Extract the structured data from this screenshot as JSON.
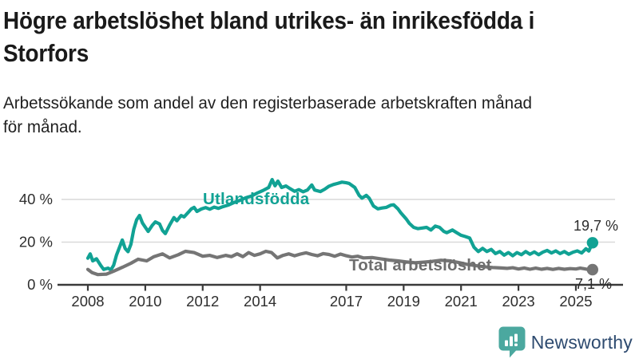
{
  "header": {
    "title_full": "Högre arbetslöshet bland utrikes- än inrikesfödda i Storfors",
    "title_lines": [
      "Högre arbetslöshet bland utrikes- än inrikesfödda i",
      "Storfors"
    ],
    "subtitle_full": "Arbetssökande som andel av den registerbaserade arbetskraften månad för månad.",
    "subtitle_lines": [
      "Arbetssökande som andel av den registerbaserade arbetskraften månad",
      "för månad."
    ]
  },
  "chart_data": {
    "type": "line",
    "title": "Högre arbetslöshet bland utrikes- än inrikesfödda i Storfors",
    "subtitle": "Arbetssökande som andel av den registerbaserade arbetskraften månad för månad.",
    "unit": "%",
    "grid": "horizontal",
    "legend_position": "inline-labels",
    "xlim": [
      2007.8,
      2026.0
    ],
    "ylim": [
      0,
      52
    ],
    "y_ticks": [
      {
        "value": 0,
        "label": "0 %"
      },
      {
        "value": 20,
        "label": "20 %"
      },
      {
        "value": 40,
        "label": "40 %"
      }
    ],
    "x_ticks": [
      {
        "year": 2008,
        "label": "2008"
      },
      {
        "year": 2010,
        "label": "2010"
      },
      {
        "year": 2012,
        "label": "2012"
      },
      {
        "year": 2014,
        "label": "2014"
      },
      {
        "year": 2017,
        "label": "2017"
      },
      {
        "year": 2019,
        "label": "2019"
      },
      {
        "year": 2021,
        "label": "2021"
      },
      {
        "year": 2023,
        "label": "2023"
      },
      {
        "year": 2025,
        "label": "2025"
      }
    ],
    "series": [
      {
        "name": "Utlandsfödda",
        "color": "#11A294",
        "end_value": 19.7,
        "end_label": "19,7 %",
        "points": [
          [
            2008.0,
            12.5
          ],
          [
            2008.08,
            14.5
          ],
          [
            2008.17,
            11.2
          ],
          [
            2008.3,
            12.2
          ],
          [
            2008.45,
            9.0
          ],
          [
            2008.55,
            7.2
          ],
          [
            2008.7,
            7.8
          ],
          [
            2008.8,
            7.0
          ],
          [
            2008.9,
            9.2
          ],
          [
            2009.0,
            14.0
          ],
          [
            2009.1,
            17.5
          ],
          [
            2009.2,
            21.0
          ],
          [
            2009.3,
            17.0
          ],
          [
            2009.4,
            15.5
          ],
          [
            2009.5,
            19.0
          ],
          [
            2009.6,
            26.0
          ],
          [
            2009.7,
            30.5
          ],
          [
            2009.8,
            32.5
          ],
          [
            2009.9,
            29.0
          ],
          [
            2010.0,
            27.0
          ],
          [
            2010.1,
            25.0
          ],
          [
            2010.25,
            28.0
          ],
          [
            2010.35,
            29.5
          ],
          [
            2010.5,
            28.5
          ],
          [
            2010.6,
            25.5
          ],
          [
            2010.7,
            24.0
          ],
          [
            2010.85,
            28.0
          ],
          [
            2011.0,
            31.5
          ],
          [
            2011.1,
            30.0
          ],
          [
            2011.25,
            32.5
          ],
          [
            2011.35,
            31.8
          ],
          [
            2011.5,
            34.0
          ],
          [
            2011.6,
            35.5
          ],
          [
            2011.7,
            36.3
          ],
          [
            2011.8,
            34.4
          ],
          [
            2011.95,
            35.5
          ],
          [
            2012.1,
            36.2
          ],
          [
            2012.25,
            35.4
          ],
          [
            2012.4,
            36.4
          ],
          [
            2012.55,
            35.8
          ],
          [
            2012.7,
            36.6
          ],
          [
            2012.9,
            37.4
          ],
          [
            2013.1,
            38.6
          ],
          [
            2013.3,
            39.6
          ],
          [
            2013.5,
            40.8
          ],
          [
            2013.7,
            41.6
          ],
          [
            2013.9,
            43.0
          ],
          [
            2014.1,
            44.2
          ],
          [
            2014.3,
            45.6
          ],
          [
            2014.42,
            49.3
          ],
          [
            2014.52,
            46.4
          ],
          [
            2014.62,
            48.6
          ],
          [
            2014.75,
            45.6
          ],
          [
            2014.9,
            46.3
          ],
          [
            2015.05,
            45.0
          ],
          [
            2015.2,
            43.8
          ],
          [
            2015.35,
            44.6
          ],
          [
            2015.5,
            43.6
          ],
          [
            2015.65,
            44.4
          ],
          [
            2015.8,
            46.8
          ],
          [
            2015.9,
            44.4
          ],
          [
            2016.1,
            43.7
          ],
          [
            2016.25,
            44.8
          ],
          [
            2016.4,
            46.2
          ],
          [
            2016.55,
            47.0
          ],
          [
            2016.7,
            47.5
          ],
          [
            2016.85,
            48.1
          ],
          [
            2017.0,
            47.8
          ],
          [
            2017.1,
            47.5
          ],
          [
            2017.3,
            45.6
          ],
          [
            2017.45,
            41.9
          ],
          [
            2017.55,
            40.6
          ],
          [
            2017.7,
            41.9
          ],
          [
            2017.8,
            40.6
          ],
          [
            2017.95,
            36.9
          ],
          [
            2018.1,
            35.6
          ],
          [
            2018.25,
            36.0
          ],
          [
            2018.4,
            36.3
          ],
          [
            2018.55,
            37.3
          ],
          [
            2018.65,
            37.5
          ],
          [
            2018.8,
            35.6
          ],
          [
            2018.9,
            33.8
          ],
          [
            2019.1,
            30.7
          ],
          [
            2019.2,
            28.8
          ],
          [
            2019.35,
            26.9
          ],
          [
            2019.5,
            26.3
          ],
          [
            2019.65,
            26.6
          ],
          [
            2019.8,
            26.9
          ],
          [
            2019.95,
            25.7
          ],
          [
            2020.1,
            27.5
          ],
          [
            2020.25,
            26.9
          ],
          [
            2020.4,
            25.0
          ],
          [
            2020.5,
            24.4
          ],
          [
            2020.7,
            25.7
          ],
          [
            2020.85,
            24.4
          ],
          [
            2021.0,
            23.2
          ],
          [
            2021.15,
            22.6
          ],
          [
            2021.3,
            21.9
          ],
          [
            2021.45,
            17.6
          ],
          [
            2021.6,
            15.6
          ],
          [
            2021.75,
            17.1
          ],
          [
            2021.9,
            15.6
          ],
          [
            2022.05,
            16.6
          ],
          [
            2022.2,
            14.6
          ],
          [
            2022.35,
            15.6
          ],
          [
            2022.5,
            13.9
          ],
          [
            2022.65,
            15.1
          ],
          [
            2022.8,
            13.6
          ],
          [
            2022.95,
            15.1
          ],
          [
            2023.1,
            14.1
          ],
          [
            2023.25,
            15.6
          ],
          [
            2023.4,
            14.3
          ],
          [
            2023.55,
            15.4
          ],
          [
            2023.7,
            14.1
          ],
          [
            2023.85,
            15.3
          ],
          [
            2024.0,
            16.1
          ],
          [
            2024.15,
            14.9
          ],
          [
            2024.3,
            15.9
          ],
          [
            2024.45,
            14.6
          ],
          [
            2024.6,
            15.6
          ],
          [
            2024.75,
            14.3
          ],
          [
            2024.9,
            15.3
          ],
          [
            2025.05,
            15.9
          ],
          [
            2025.2,
            14.9
          ],
          [
            2025.35,
            16.9
          ],
          [
            2025.45,
            15.8
          ],
          [
            2025.58,
            19.7
          ]
        ]
      },
      {
        "name": "Total arbetslöshet",
        "color": "#757575",
        "label_color": "#6E6E6E",
        "end_value": 7.1,
        "end_label": "7,1 %",
        "points": [
          [
            2008.0,
            7.2
          ],
          [
            2008.15,
            5.7
          ],
          [
            2008.35,
            4.8
          ],
          [
            2008.65,
            5.0
          ],
          [
            2008.9,
            6.4
          ],
          [
            2009.2,
            8.2
          ],
          [
            2009.5,
            10.1
          ],
          [
            2009.75,
            12.0
          ],
          [
            2010.05,
            11.2
          ],
          [
            2010.3,
            13.2
          ],
          [
            2010.6,
            14.5
          ],
          [
            2010.85,
            12.6
          ],
          [
            2011.15,
            14.1
          ],
          [
            2011.4,
            15.7
          ],
          [
            2011.7,
            15.1
          ],
          [
            2012.0,
            13.4
          ],
          [
            2012.25,
            13.8
          ],
          [
            2012.5,
            12.8
          ],
          [
            2012.8,
            13.8
          ],
          [
            2013.0,
            13.2
          ],
          [
            2013.2,
            14.5
          ],
          [
            2013.4,
            13.2
          ],
          [
            2013.6,
            15.1
          ],
          [
            2013.8,
            13.8
          ],
          [
            2014.0,
            14.5
          ],
          [
            2014.2,
            15.7
          ],
          [
            2014.4,
            15.1
          ],
          [
            2014.6,
            12.6
          ],
          [
            2014.8,
            13.8
          ],
          [
            2015.0,
            14.5
          ],
          [
            2015.2,
            13.6
          ],
          [
            2015.4,
            14.4
          ],
          [
            2015.6,
            15.0
          ],
          [
            2015.8,
            14.2
          ],
          [
            2016.0,
            13.6
          ],
          [
            2016.2,
            14.6
          ],
          [
            2016.4,
            14.2
          ],
          [
            2016.6,
            13.4
          ],
          [
            2016.8,
            14.4
          ],
          [
            2017.0,
            13.6
          ],
          [
            2017.2,
            13.0
          ],
          [
            2017.4,
            13.4
          ],
          [
            2017.6,
            12.6
          ],
          [
            2017.9,
            12.8
          ],
          [
            2018.2,
            12.2
          ],
          [
            2018.5,
            11.6
          ],
          [
            2018.8,
            11.2
          ],
          [
            2019.1,
            10.7
          ],
          [
            2019.4,
            10.3
          ],
          [
            2019.7,
            10.6
          ],
          [
            2020.0,
            11.0
          ],
          [
            2020.3,
            11.5
          ],
          [
            2020.6,
            11.2
          ],
          [
            2020.9,
            10.5
          ],
          [
            2021.2,
            9.6
          ],
          [
            2021.5,
            9.0
          ],
          [
            2021.8,
            8.5
          ],
          [
            2022.1,
            8.1
          ],
          [
            2022.4,
            7.9
          ],
          [
            2022.6,
            7.7
          ],
          [
            2022.8,
            8.0
          ],
          [
            2023.0,
            7.4
          ],
          [
            2023.2,
            7.9
          ],
          [
            2023.4,
            7.3
          ],
          [
            2023.6,
            7.8
          ],
          [
            2023.8,
            7.3
          ],
          [
            2024.0,
            7.7
          ],
          [
            2024.2,
            7.2
          ],
          [
            2024.4,
            7.7
          ],
          [
            2024.6,
            7.3
          ],
          [
            2024.8,
            7.6
          ],
          [
            2025.0,
            7.4
          ],
          [
            2025.15,
            7.8
          ],
          [
            2025.3,
            7.5
          ],
          [
            2025.45,
            7.1
          ],
          [
            2025.58,
            7.1
          ]
        ]
      }
    ]
  },
  "colors": {
    "accent_teal": "#11A294",
    "line_gray": "#757575",
    "gridline": "#D9D9D9",
    "axis": "#3A3A3A",
    "tick_text": "#2E2E2E",
    "value_label_text": "#2B2B2B"
  },
  "branding": {
    "logo_text": "Newsworthy",
    "logo_icon": "newsworthy-bubble-chart-icon",
    "icon_color": "#4BA89F",
    "text_color": "#2E4B70"
  }
}
